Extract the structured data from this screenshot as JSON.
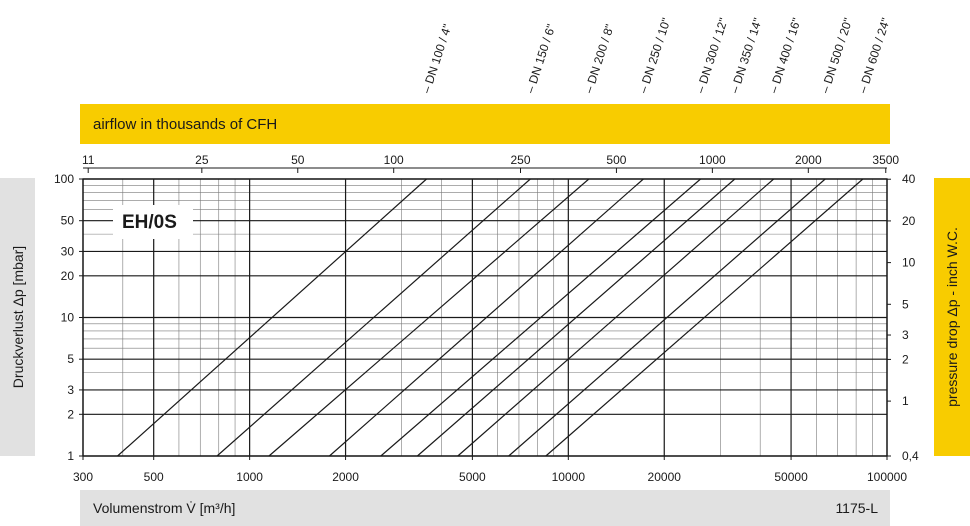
{
  "chart_data": {
    "type": "line",
    "title": "EH/0S",
    "code": "1175-L",
    "xlabel": "Volumenstrom V̇ [m³/h]",
    "ylabel": "Druckverlust Δp [mbar]",
    "x2label": "airflow in thousands of CFH",
    "y2label": "pressure drop Δp - inch W.C.",
    "xscale": "log",
    "yscale": "log",
    "xlim": [
      300,
      100000
    ],
    "ylim": [
      1,
      100
    ],
    "grid": true,
    "x_ticks": [
      "300",
      "500",
      "1000",
      "2000",
      "5000",
      "10000",
      "20000",
      "50000",
      "100000"
    ],
    "y_ticks": [
      "1",
      "2",
      "3",
      "5",
      "10",
      "20",
      "30",
      "50",
      "100"
    ],
    "x2_ticks": [
      "11",
      "25",
      "50",
      "100",
      "250",
      "500",
      "1000",
      "2000",
      "3500"
    ],
    "y2_ticks": [
      "0,4",
      "1",
      "2",
      "3",
      "5",
      "10",
      "20",
      "40"
    ],
    "series": [
      {
        "name": "DN 100 / 4\"",
        "x": [
          385,
          3590
        ],
        "y": [
          1,
          100
        ]
      },
      {
        "name": "DN 150 / 6\"",
        "x": [
          790,
          7600
        ],
        "y": [
          1,
          100
        ]
      },
      {
        "name": "DN 200 / 8\"",
        "x": [
          1150,
          11600
        ],
        "y": [
          1,
          100
        ]
      },
      {
        "name": "DN 250 / 10\"",
        "x": [
          1780,
          17200
        ],
        "y": [
          1,
          100
        ]
      },
      {
        "name": "DN 300 / 12\"",
        "x": [
          2580,
          26000
        ],
        "y": [
          1,
          100
        ]
      },
      {
        "name": "DN 350 / 14\"",
        "x": [
          3360,
          33300
        ],
        "y": [
          1,
          100
        ]
      },
      {
        "name": "DN 400 / 16\"",
        "x": [
          4500,
          44100
        ],
        "y": [
          1,
          100
        ]
      },
      {
        "name": "DN 500 / 20\"",
        "x": [
          6500,
          64000
        ],
        "y": [
          1,
          100
        ]
      },
      {
        "name": "DN 600 / 24\"",
        "x": [
          8500,
          84000
        ],
        "y": [
          1,
          100
        ]
      }
    ]
  }
}
